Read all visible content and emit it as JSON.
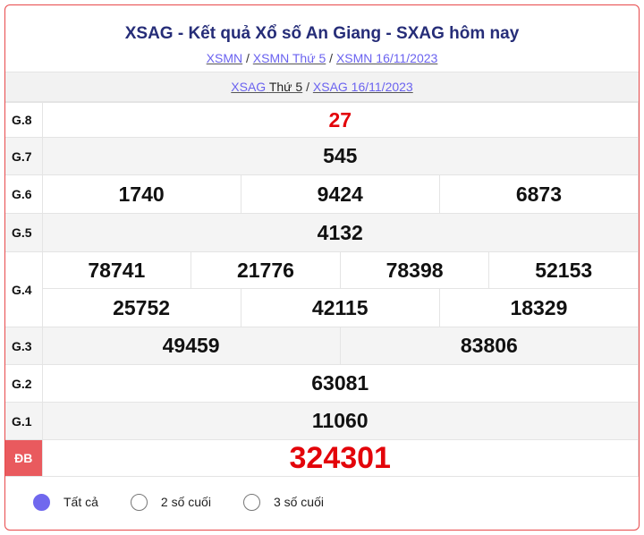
{
  "header": {
    "title": "XSAG - Kết quả Xổ số An Giang - SXAG hôm nay",
    "crumbs": [
      "XSMN",
      "XSMN Thứ 5",
      "XSMN 16/11/2023"
    ],
    "sep": "/"
  },
  "subnav": {
    "link1_a": "XSAG",
    "link1_b": "Thứ 5",
    "link2": "XSAG 16/11/2023"
  },
  "prizes": {
    "g8": {
      "label": "G.8",
      "values": [
        "27"
      ]
    },
    "g7": {
      "label": "G.7",
      "values": [
        "545"
      ]
    },
    "g6": {
      "label": "G.6",
      "values": [
        "1740",
        "9424",
        "6873"
      ]
    },
    "g5": {
      "label": "G.5",
      "values": [
        "4132"
      ]
    },
    "g4": {
      "label": "G.4",
      "values": [
        "78741",
        "21776",
        "78398",
        "52153",
        "25752",
        "42115",
        "18329"
      ]
    },
    "g3": {
      "label": "G.3",
      "values": [
        "49459",
        "83806"
      ]
    },
    "g2": {
      "label": "G.2",
      "values": [
        "63081"
      ]
    },
    "g1": {
      "label": "G.1",
      "values": [
        "11060"
      ]
    },
    "db": {
      "label": "ĐB",
      "values": [
        "324301"
      ]
    }
  },
  "filters": {
    "options": [
      "Tất cả",
      "2 số cuối",
      "3 số cuối"
    ],
    "selected": "Tất cả"
  },
  "colors": {
    "border": "#e8494b",
    "title": "#262d78",
    "link": "#6b63f0",
    "special": "#e3040a",
    "radio_selected": "#7068ee"
  }
}
